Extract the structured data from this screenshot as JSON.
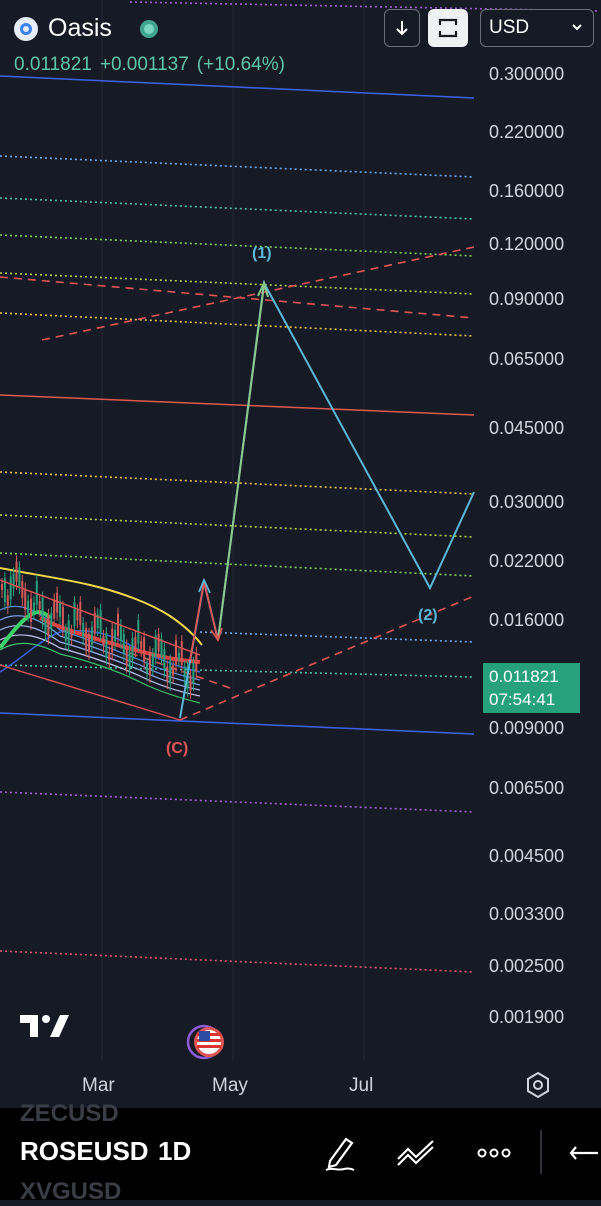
{
  "header": {
    "coin_name": "Oasis",
    "price": "0.011821",
    "change": "+0.001137",
    "change_pct": "(+10.64%)",
    "currency": "USD"
  },
  "toolbar": {
    "download_icon": "arrow-down-icon",
    "fullscreen_icon": "fullscreen-icon",
    "currency_chevron": "chevron-down-icon"
  },
  "y_axis": {
    "labels": [
      "0.300000",
      "0.220000",
      "0.160000",
      "0.120000",
      "0.090000",
      "0.065000",
      "0.045000",
      "0.030000",
      "0.022000",
      "0.016000",
      "0.009000",
      "0.006500",
      "0.004500",
      "0.003300",
      "0.002500",
      "0.001900"
    ],
    "scale": "log"
  },
  "current_price": {
    "value": "0.011821",
    "countdown": "07:54:41",
    "color": "#26a17b"
  },
  "x_axis": {
    "labels": [
      "Mar",
      "May",
      "Jul"
    ]
  },
  "wave_labels": {
    "wave_1": "(1)",
    "wave_2": "(2)",
    "wave_c": "(C)"
  },
  "colors": {
    "background": "#161a25",
    "projection_cyan": "#5ab8d6",
    "projection_green": "#8bc98a",
    "correction_red": "#e05555",
    "up_green": "#26a17b"
  },
  "bottom_bar": {
    "symbol_above": "ZECUSD",
    "symbol": "ROSEUSD",
    "symbol_below": "XVGUSD",
    "interval": "1D",
    "icons": [
      "pencil-icon",
      "indicators-icon",
      "more-icon",
      "undo-icon"
    ]
  }
}
